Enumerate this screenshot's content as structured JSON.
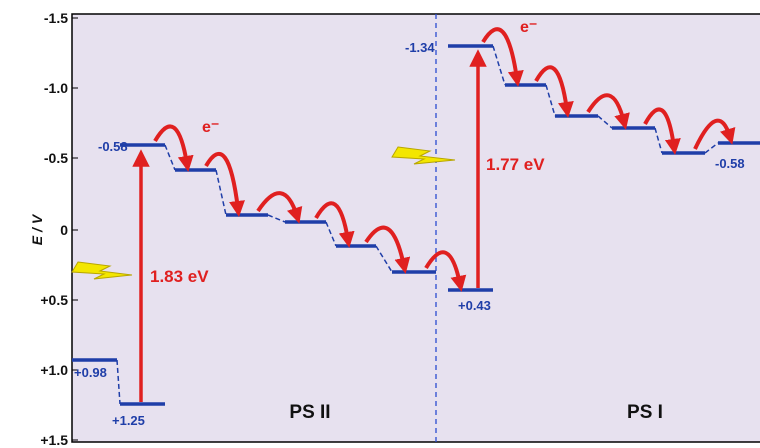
{
  "axis": {
    "title": "E / V",
    "ticks": [
      "-1.5",
      "-1.0",
      "-0.5",
      "0",
      "+0.5",
      "+1.0",
      "+1.5"
    ]
  },
  "level_labels": [
    "+0.98",
    "+1.25",
    "-0.58",
    "+0.43",
    "-1.34",
    "-0.58"
  ],
  "gaps": [
    "1.83 eV",
    "1.77 eV"
  ],
  "electron_labels": [
    "e⁻",
    "e⁻"
  ],
  "systems": [
    "PS II",
    "PS I"
  ]
}
